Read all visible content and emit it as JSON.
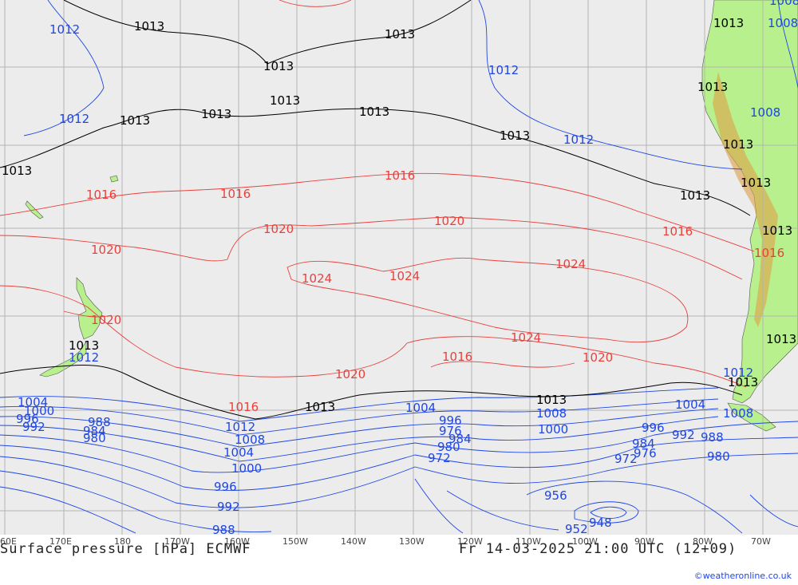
{
  "map": {
    "land_color": "#b7f08c",
    "ocean_color": "#ececec",
    "grid_color": "#b4b4b4",
    "isobar_colors": {
      "low": "#1e46e6",
      "standard": "#000000",
      "high": "#e8413c"
    }
  },
  "longitude_labels": [
    "60E",
    "170E",
    "180",
    "170W",
    "160W",
    "150W",
    "140W",
    "130W",
    "120W",
    "110W",
    "100W",
    "90W",
    "80W",
    "70W"
  ],
  "isobar_labels": [
    {
      "text": "1012",
      "color": "blue"
    },
    {
      "text": "1013",
      "color": "black"
    },
    {
      "text": "1013",
      "color": "black"
    },
    {
      "text": "1013",
      "color": "black"
    },
    {
      "text": "1012",
      "color": "blue"
    },
    {
      "text": "1012",
      "color": "blue"
    },
    {
      "text": "1013",
      "color": "black"
    },
    {
      "text": "1013",
      "color": "black"
    },
    {
      "text": "1013",
      "color": "black"
    },
    {
      "text": "1013",
      "color": "black"
    },
    {
      "text": "1013",
      "color": "black"
    },
    {
      "text": "1012",
      "color": "blue"
    },
    {
      "text": "1013",
      "color": "black"
    },
    {
      "text": "1016",
      "color": "red"
    },
    {
      "text": "1016",
      "color": "red"
    },
    {
      "text": "1016",
      "color": "red"
    },
    {
      "text": "1013",
      "color": "black"
    },
    {
      "text": "1016",
      "color": "red"
    },
    {
      "text": "1020",
      "color": "red"
    },
    {
      "text": "1020",
      "color": "red"
    },
    {
      "text": "1020",
      "color": "red"
    },
    {
      "text": "1024",
      "color": "red"
    },
    {
      "text": "1024",
      "color": "red"
    },
    {
      "text": "1024",
      "color": "red"
    },
    {
      "text": "1024",
      "color": "red"
    },
    {
      "text": "1020",
      "color": "red"
    },
    {
      "text": "1013",
      "color": "black"
    },
    {
      "text": "1012",
      "color": "blue"
    },
    {
      "text": "1016",
      "color": "red"
    },
    {
      "text": "1020",
      "color": "red"
    },
    {
      "text": "1020",
      "color": "red"
    },
    {
      "text": "1016",
      "color": "red"
    },
    {
      "text": "1013",
      "color": "black"
    },
    {
      "text": "1013",
      "color": "black"
    },
    {
      "text": "1004",
      "color": "blue"
    },
    {
      "text": "1008",
      "color": "blue"
    },
    {
      "text": "1000",
      "color": "blue"
    },
    {
      "text": "996",
      "color": "blue"
    },
    {
      "text": "1004",
      "color": "blue"
    },
    {
      "text": "1008",
      "color": "blue"
    },
    {
      "text": "1000",
      "color": "blue"
    },
    {
      "text": "996",
      "color": "blue"
    },
    {
      "text": "992",
      "color": "blue"
    },
    {
      "text": "988",
      "color": "blue"
    },
    {
      "text": "984",
      "color": "blue"
    },
    {
      "text": "980",
      "color": "blue"
    },
    {
      "text": "976",
      "color": "blue"
    },
    {
      "text": "972",
      "color": "blue"
    },
    {
      "text": "980",
      "color": "blue"
    },
    {
      "text": "984",
      "color": "blue"
    },
    {
      "text": "988",
      "color": "blue"
    },
    {
      "text": "976",
      "color": "blue"
    },
    {
      "text": "972",
      "color": "blue"
    },
    {
      "text": "1012",
      "color": "blue"
    },
    {
      "text": "1008",
      "color": "blue"
    },
    {
      "text": "1004",
      "color": "blue"
    },
    {
      "text": "1000",
      "color": "blue"
    },
    {
      "text": "996",
      "color": "blue"
    },
    {
      "text": "992",
      "color": "blue"
    },
    {
      "text": "988",
      "color": "blue"
    },
    {
      "text": "956",
      "color": "blue"
    },
    {
      "text": "952",
      "color": "blue"
    },
    {
      "text": "948",
      "color": "blue"
    },
    {
      "text": "1004",
      "color": "blue"
    },
    {
      "text": "1000",
      "color": "blue"
    },
    {
      "text": "996",
      "color": "blue"
    },
    {
      "text": "992",
      "color": "blue"
    },
    {
      "text": "988",
      "color": "blue"
    },
    {
      "text": "984",
      "color": "blue"
    },
    {
      "text": "980",
      "color": "blue"
    },
    {
      "text": "1013",
      "color": "black"
    },
    {
      "text": "1012",
      "color": "blue"
    },
    {
      "text": "1008",
      "color": "blue"
    },
    {
      "text": "1004",
      "color": "blue"
    },
    {
      "text": "1000",
      "color": "blue"
    },
    {
      "text": "996",
      "color": "blue"
    },
    {
      "text": "992",
      "color": "blue"
    },
    {
      "text": "988",
      "color": "blue"
    },
    {
      "text": "980",
      "color": "blue"
    },
    {
      "text": "1008",
      "color": "blue"
    },
    {
      "text": "1013",
      "color": "black"
    },
    {
      "text": "1013",
      "color": "black"
    },
    {
      "text": "1013",
      "color": "black"
    },
    {
      "text": "1013",
      "color": "black"
    },
    {
      "text": "1013",
      "color": "black"
    },
    {
      "text": "1008",
      "color": "blue"
    },
    {
      "text": "1016",
      "color": "red"
    },
    {
      "text": "1013",
      "color": "black"
    },
    {
      "text": "1008",
      "color": "blue"
    }
  ],
  "footer": {
    "title": "Surface pressure [hPa] ECMWF",
    "datetime": "Fr 14-03-2025 21:00 UTC (12+09)",
    "credit": "©weatheronline.co.uk"
  }
}
